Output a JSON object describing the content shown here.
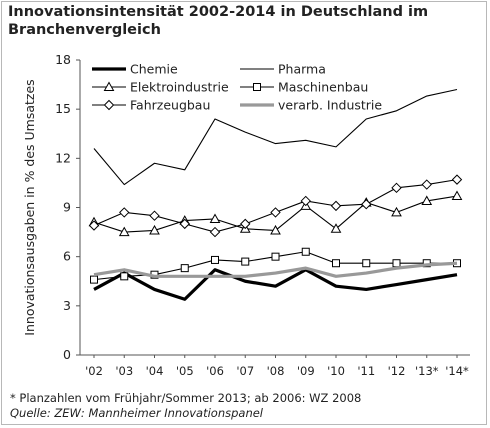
{
  "chart_data": {
    "type": "line",
    "title": "Innovationsintensität 2002-2014 in Deutschland im Branchenvergleich",
    "ylabel": "Innovationsausgaben in % des Umsatzes",
    "xlabel": "",
    "categories": [
      "'02",
      "'03",
      "'04",
      "'05",
      "'06",
      "'07",
      "'08",
      "'09",
      "'10",
      "'11",
      "'12",
      "'13*",
      "'14*"
    ],
    "ylim": [
      0,
      18
    ],
    "yticks": [
      0,
      3,
      6,
      9,
      12,
      15,
      18
    ],
    "grid": false,
    "legend_placement": "top",
    "series": [
      {
        "name": "Chemie",
        "style": "thick",
        "color": "#000000",
        "marker": "none",
        "values": [
          4.0,
          5.0,
          4.0,
          3.4,
          5.2,
          4.5,
          4.2,
          5.2,
          4.2,
          4.0,
          4.3,
          4.6,
          4.9
        ]
      },
      {
        "name": "Pharma",
        "style": "thin",
        "color": "#000000",
        "marker": "none",
        "values": [
          12.6,
          10.4,
          11.7,
          11.3,
          14.4,
          13.6,
          12.9,
          13.1,
          12.7,
          14.4,
          14.9,
          15.8,
          16.2
        ]
      },
      {
        "name": "Elektroindustrie",
        "style": "thin",
        "color": "#000000",
        "marker": "triangle",
        "values": [
          8.1,
          7.5,
          7.6,
          8.2,
          8.3,
          7.7,
          7.6,
          9.1,
          7.7,
          9.3,
          8.7,
          9.4,
          9.7
        ]
      },
      {
        "name": "Maschinenbau",
        "style": "thin",
        "color": "#000000",
        "marker": "square",
        "values": [
          4.6,
          4.8,
          4.9,
          5.3,
          5.8,
          5.7,
          6.0,
          6.3,
          5.6,
          5.6,
          5.6,
          5.6,
          5.6
        ]
      },
      {
        "name": "Fahrzeugbau",
        "style": "thin",
        "color": "#000000",
        "marker": "diamond",
        "values": [
          7.9,
          8.7,
          8.5,
          8.0,
          7.5,
          8.0,
          8.7,
          9.4,
          9.1,
          9.2,
          10.2,
          10.4,
          10.7
        ]
      },
      {
        "name": "verarb. Industrie",
        "style": "thick",
        "color": "#999999",
        "marker": "none",
        "values": [
          4.9,
          5.2,
          4.8,
          4.8,
          4.8,
          4.8,
          5.0,
          5.3,
          4.8,
          5.0,
          5.3,
          5.5,
          5.6
        ]
      }
    ]
  },
  "footnote": "* Planzahlen vom Frühjahr/Sommer 2013; ab 2006: WZ 2008",
  "source": "Quelle:  ZEW: Mannheimer Innovationspanel"
}
